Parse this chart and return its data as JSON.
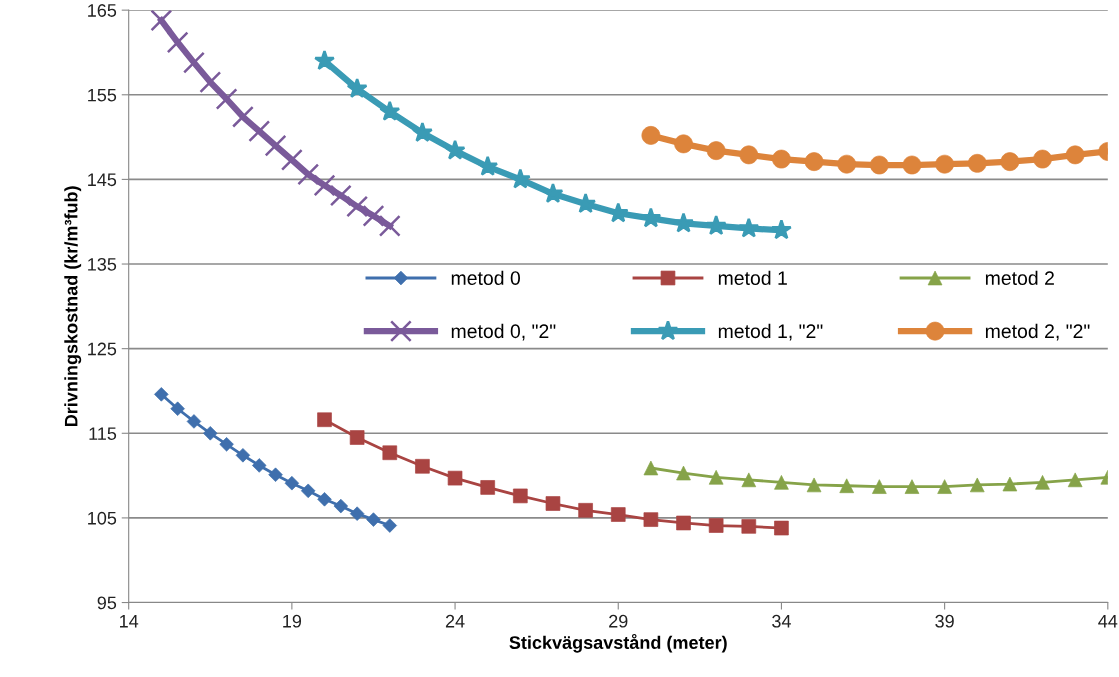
{
  "chart_data": {
    "type": "line",
    "xlabel": "Stickvägsavstånd (meter)",
    "ylabel": "Drivningskostnad (kr/m³fub)",
    "xlim": [
      14,
      44
    ],
    "xticks": [
      14,
      19,
      24,
      29,
      34,
      39,
      44
    ],
    "ylim": [
      95,
      165
    ],
    "yticks": [
      95,
      105,
      115,
      125,
      135,
      145,
      155,
      165
    ],
    "grid": "y",
    "legend": "right",
    "series": [
      {
        "name": "metod 0",
        "color": "#3f6fad",
        "marker": "diamond",
        "x": [
          15,
          15.5,
          16,
          16.5,
          17,
          17.5,
          18,
          18.5,
          19,
          19.5,
          20,
          20.5,
          21,
          21.5,
          22
        ],
        "values": [
          119.6,
          117.9,
          116.4,
          115.0,
          113.7,
          112.4,
          111.2,
          110.1,
          109.1,
          108.2,
          107.2,
          106.4,
          105.5,
          104.8,
          104.1
        ]
      },
      {
        "name": "metod 1",
        "color": "#a94442",
        "marker": "square",
        "x": [
          20,
          21,
          22,
          23,
          24,
          25,
          26,
          27,
          28,
          29,
          30,
          31,
          32,
          33,
          34
        ],
        "values": [
          116.6,
          114.5,
          112.7,
          111.1,
          109.7,
          108.6,
          107.6,
          106.7,
          105.9,
          105.4,
          104.8,
          104.4,
          104.1,
          104.0,
          103.8
        ]
      },
      {
        "name": "metod 2",
        "color": "#86a349",
        "marker": "triangle",
        "x": [
          30,
          31,
          32,
          33,
          34,
          35,
          36,
          37,
          38,
          39,
          40,
          41,
          42,
          43,
          44
        ],
        "values": [
          110.9,
          110.3,
          109.8,
          109.5,
          109.2,
          108.9,
          108.8,
          108.7,
          108.7,
          108.7,
          108.9,
          109.0,
          109.2,
          109.5,
          109.8
        ]
      },
      {
        "name": "metod 0, \"2\"",
        "color": "#7a5a9a",
        "marker": "cross",
        "x": [
          15,
          15.5,
          16,
          16.5,
          17,
          17.5,
          18,
          18.5,
          19,
          19.5,
          20,
          20.5,
          21,
          21.5,
          22
        ],
        "values": [
          163.8,
          161.2,
          158.8,
          156.5,
          154.5,
          152.4,
          150.7,
          149.0,
          147.3,
          145.6,
          144.3,
          143.1,
          141.8,
          140.7,
          139.5
        ]
      },
      {
        "name": "metod 1, \"2\"",
        "color": "#3a9bb5",
        "marker": "star",
        "x": [
          20,
          21,
          22,
          23,
          24,
          25,
          26,
          27,
          28,
          29,
          30,
          31,
          32,
          33,
          34
        ],
        "values": [
          159.0,
          155.7,
          153.0,
          150.5,
          148.4,
          146.5,
          145.0,
          143.3,
          142.1,
          141.0,
          140.4,
          139.8,
          139.5,
          139.2,
          139.0
        ]
      },
      {
        "name": "metod 2, \"2\"",
        "color": "#dd843b",
        "marker": "circle",
        "x": [
          30,
          31,
          32,
          33,
          34,
          35,
          36,
          37,
          38,
          39,
          40,
          41,
          42,
          43,
          44
        ],
        "values": [
          150.2,
          149.2,
          148.4,
          147.9,
          147.4,
          147.1,
          146.8,
          146.7,
          146.7,
          146.8,
          146.9,
          147.1,
          147.4,
          147.9,
          148.3
        ]
      }
    ]
  }
}
